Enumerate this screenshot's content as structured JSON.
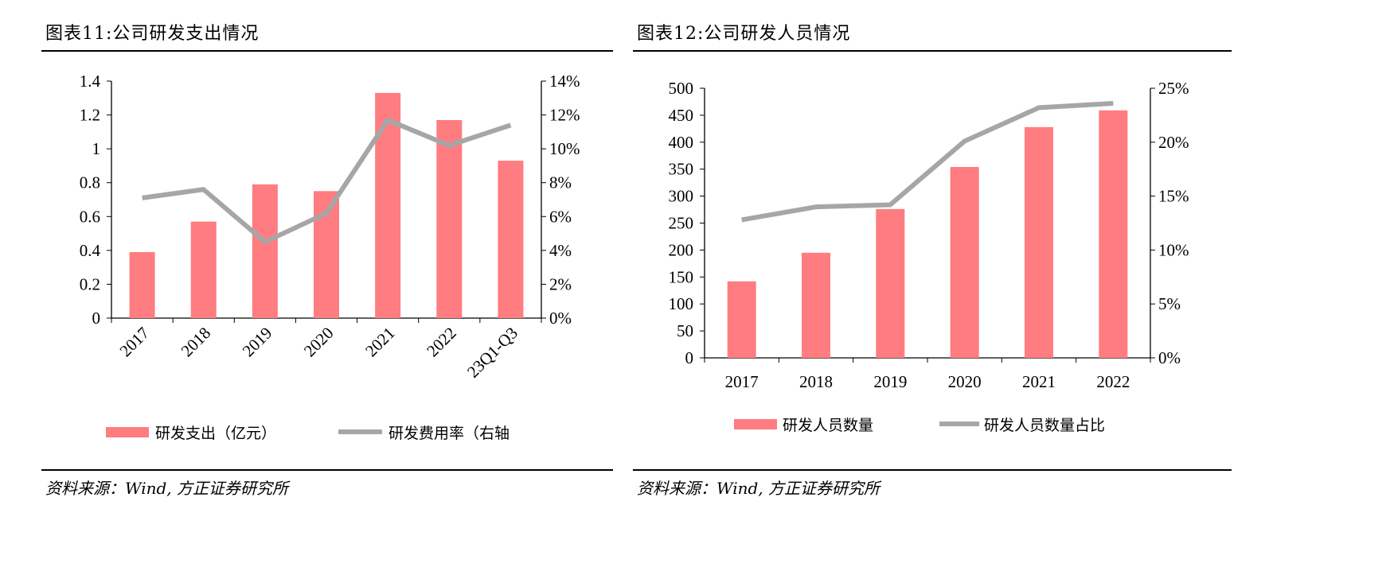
{
  "colors": {
    "bar": "#FF7C80",
    "line": "#A6A6A6",
    "axis": "#000000"
  },
  "chart_data": [
    {
      "type": "bar+line",
      "title": "图表11:公司研发支出情况",
      "categories": [
        "2017",
        "2018",
        "2019",
        "2020",
        "2021",
        "2022",
        "23Q1-Q3"
      ],
      "series": [
        {
          "name": "研发支出（亿元）",
          "type": "bar",
          "axis": "left",
          "values": [
            0.39,
            0.57,
            0.79,
            0.75,
            1.33,
            1.17,
            0.93
          ]
        },
        {
          "name": "研发费用率（右轴",
          "type": "line",
          "axis": "right",
          "values": [
            7.1,
            7.6,
            4.5,
            6.2,
            11.7,
            10.2,
            11.4
          ]
        }
      ],
      "left_axis": {
        "min": 0,
        "max": 1.4,
        "ticks": [
          "0",
          "0.2",
          "0.4",
          "0.6",
          "0.8",
          "1",
          "1.2",
          "1.4"
        ]
      },
      "right_axis": {
        "min": 0,
        "max": 14,
        "ticks": [
          "0%",
          "2%",
          "4%",
          "6%",
          "8%",
          "10%",
          "12%",
          "14%"
        ]
      },
      "x_label_rotation": "diagonal",
      "legend": "bottom",
      "source": "资料来源：Wind, 方正证券研究所"
    },
    {
      "type": "bar+line",
      "title": "图表12:公司研发人员情况",
      "categories": [
        "2017",
        "2018",
        "2019",
        "2020",
        "2021",
        "2022"
      ],
      "series": [
        {
          "name": "研发人员数量",
          "type": "bar",
          "axis": "left",
          "values": [
            142,
            195,
            276,
            354,
            428,
            459
          ]
        },
        {
          "name": "研发人员数量占比",
          "type": "line",
          "axis": "right",
          "values": [
            12.8,
            14.0,
            14.2,
            20.1,
            23.2,
            23.6
          ]
        }
      ],
      "left_axis": {
        "min": 0,
        "max": 500,
        "ticks": [
          "0",
          "50",
          "100",
          "150",
          "200",
          "250",
          "300",
          "350",
          "400",
          "450",
          "500"
        ]
      },
      "right_axis": {
        "min": 0,
        "max": 25,
        "ticks": [
          "0%",
          "5%",
          "10%",
          "15%",
          "20%",
          "25%"
        ]
      },
      "x_label_rotation": "horizontal",
      "legend": "bottom",
      "source": "资料来源：Wind, 方正证券研究所"
    }
  ]
}
